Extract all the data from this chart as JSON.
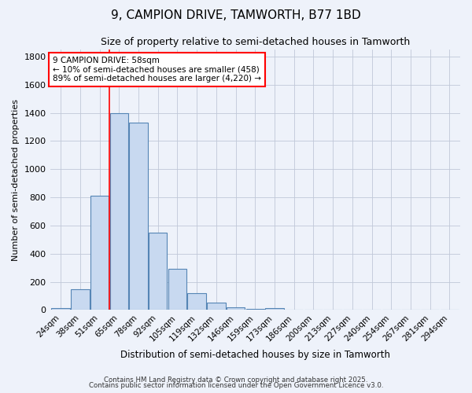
{
  "title": "9, CAMPION DRIVE, TAMWORTH, B77 1BD",
  "subtitle": "Size of property relative to semi-detached houses in Tamworth",
  "xlabel": "Distribution of semi-detached houses by size in Tamworth",
  "ylabel": "Number of semi-detached properties",
  "categories": [
    "24sqm",
    "38sqm",
    "51sqm",
    "65sqm",
    "78sqm",
    "92sqm",
    "105sqm",
    "119sqm",
    "132sqm",
    "146sqm",
    "159sqm",
    "173sqm",
    "186sqm",
    "200sqm",
    "213sqm",
    "227sqm",
    "240sqm",
    "254sqm",
    "267sqm",
    "281sqm",
    "294sqm"
  ],
  "values": [
    15,
    150,
    810,
    1400,
    1330,
    550,
    290,
    120,
    52,
    20,
    10,
    15,
    0,
    0,
    0,
    0,
    0,
    0,
    0,
    0,
    0
  ],
  "bar_color": "#c8d9f0",
  "bar_edge_color": "#5585b5",
  "grid_color": "#c0c8d8",
  "bg_color": "#eef2fa",
  "annotation_text": "9 CAMPION DRIVE: 58sqm\n← 10% of semi-detached houses are smaller (458)\n89% of semi-detached houses are larger (4,220) →",
  "annotation_box_color": "white",
  "annotation_box_edge_color": "red",
  "red_line_index": 3,
  "ylim": [
    0,
    1850
  ],
  "yticks": [
    0,
    200,
    400,
    600,
    800,
    1000,
    1200,
    1400,
    1600,
    1800
  ],
  "footer_line1": "Contains HM Land Registry data © Crown copyright and database right 2025.",
  "footer_line2": "Contains public sector information licensed under the Open Government Licence v3.0."
}
